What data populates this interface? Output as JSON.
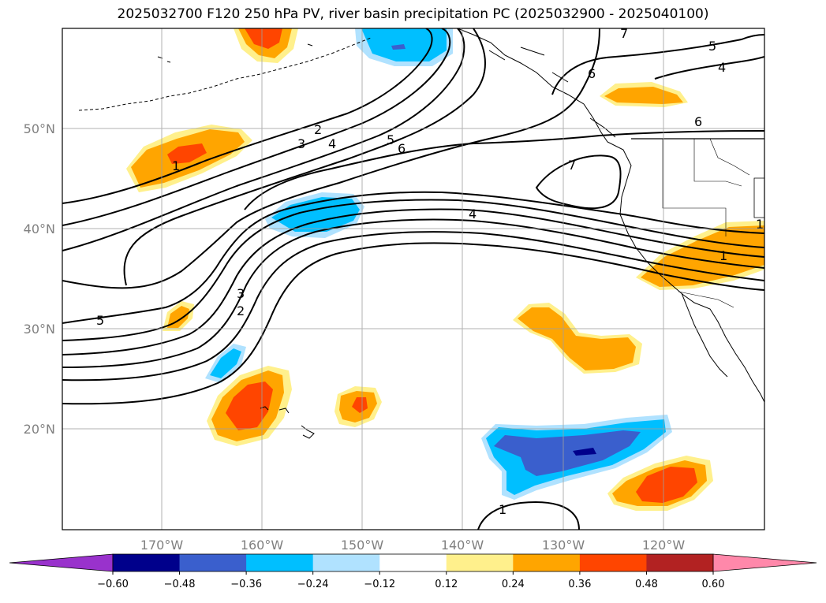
{
  "title": "2025032700 F120 250 hPa PV, river basin precipitation PC (2025032900 - 2025040100)",
  "longitude_ticks": [
    "170°W",
    "160°W",
    "150°W",
    "140°W",
    "130°W",
    "120°W"
  ],
  "latitude_ticks": [
    "50°N",
    "40°N",
    "30°N",
    "20°N"
  ],
  "colorbar": {
    "ticks": [
      "−0.60",
      "−0.48",
      "−0.36",
      "−0.24",
      "−0.12",
      "0.12",
      "0.24",
      "0.36",
      "0.48",
      "0.60"
    ],
    "colors": [
      "#9932cc",
      "#00008b",
      "#3a5fcd",
      "#00bfff",
      "#b0e2ff",
      "#ffffff",
      "#fff08c",
      "#ffa500",
      "#ff4500",
      "#b22222",
      "#ff88aa"
    ]
  },
  "contour_labels": [
    "1",
    "2",
    "3",
    "4",
    "5",
    "6",
    "7",
    "4",
    "5",
    "6",
    "7",
    "2",
    "3",
    "4",
    "5",
    "6",
    "1",
    "1",
    "1"
  ],
  "colors": {
    "pos_light": "#fff08c",
    "pos_mid": "#ffa500",
    "pos_strong": "#ff4500",
    "neg_light": "#b0e2ff",
    "neg_mid": "#00bfff",
    "neg_strong": "#3a5fcd",
    "neg_darkest": "#00008b"
  }
}
